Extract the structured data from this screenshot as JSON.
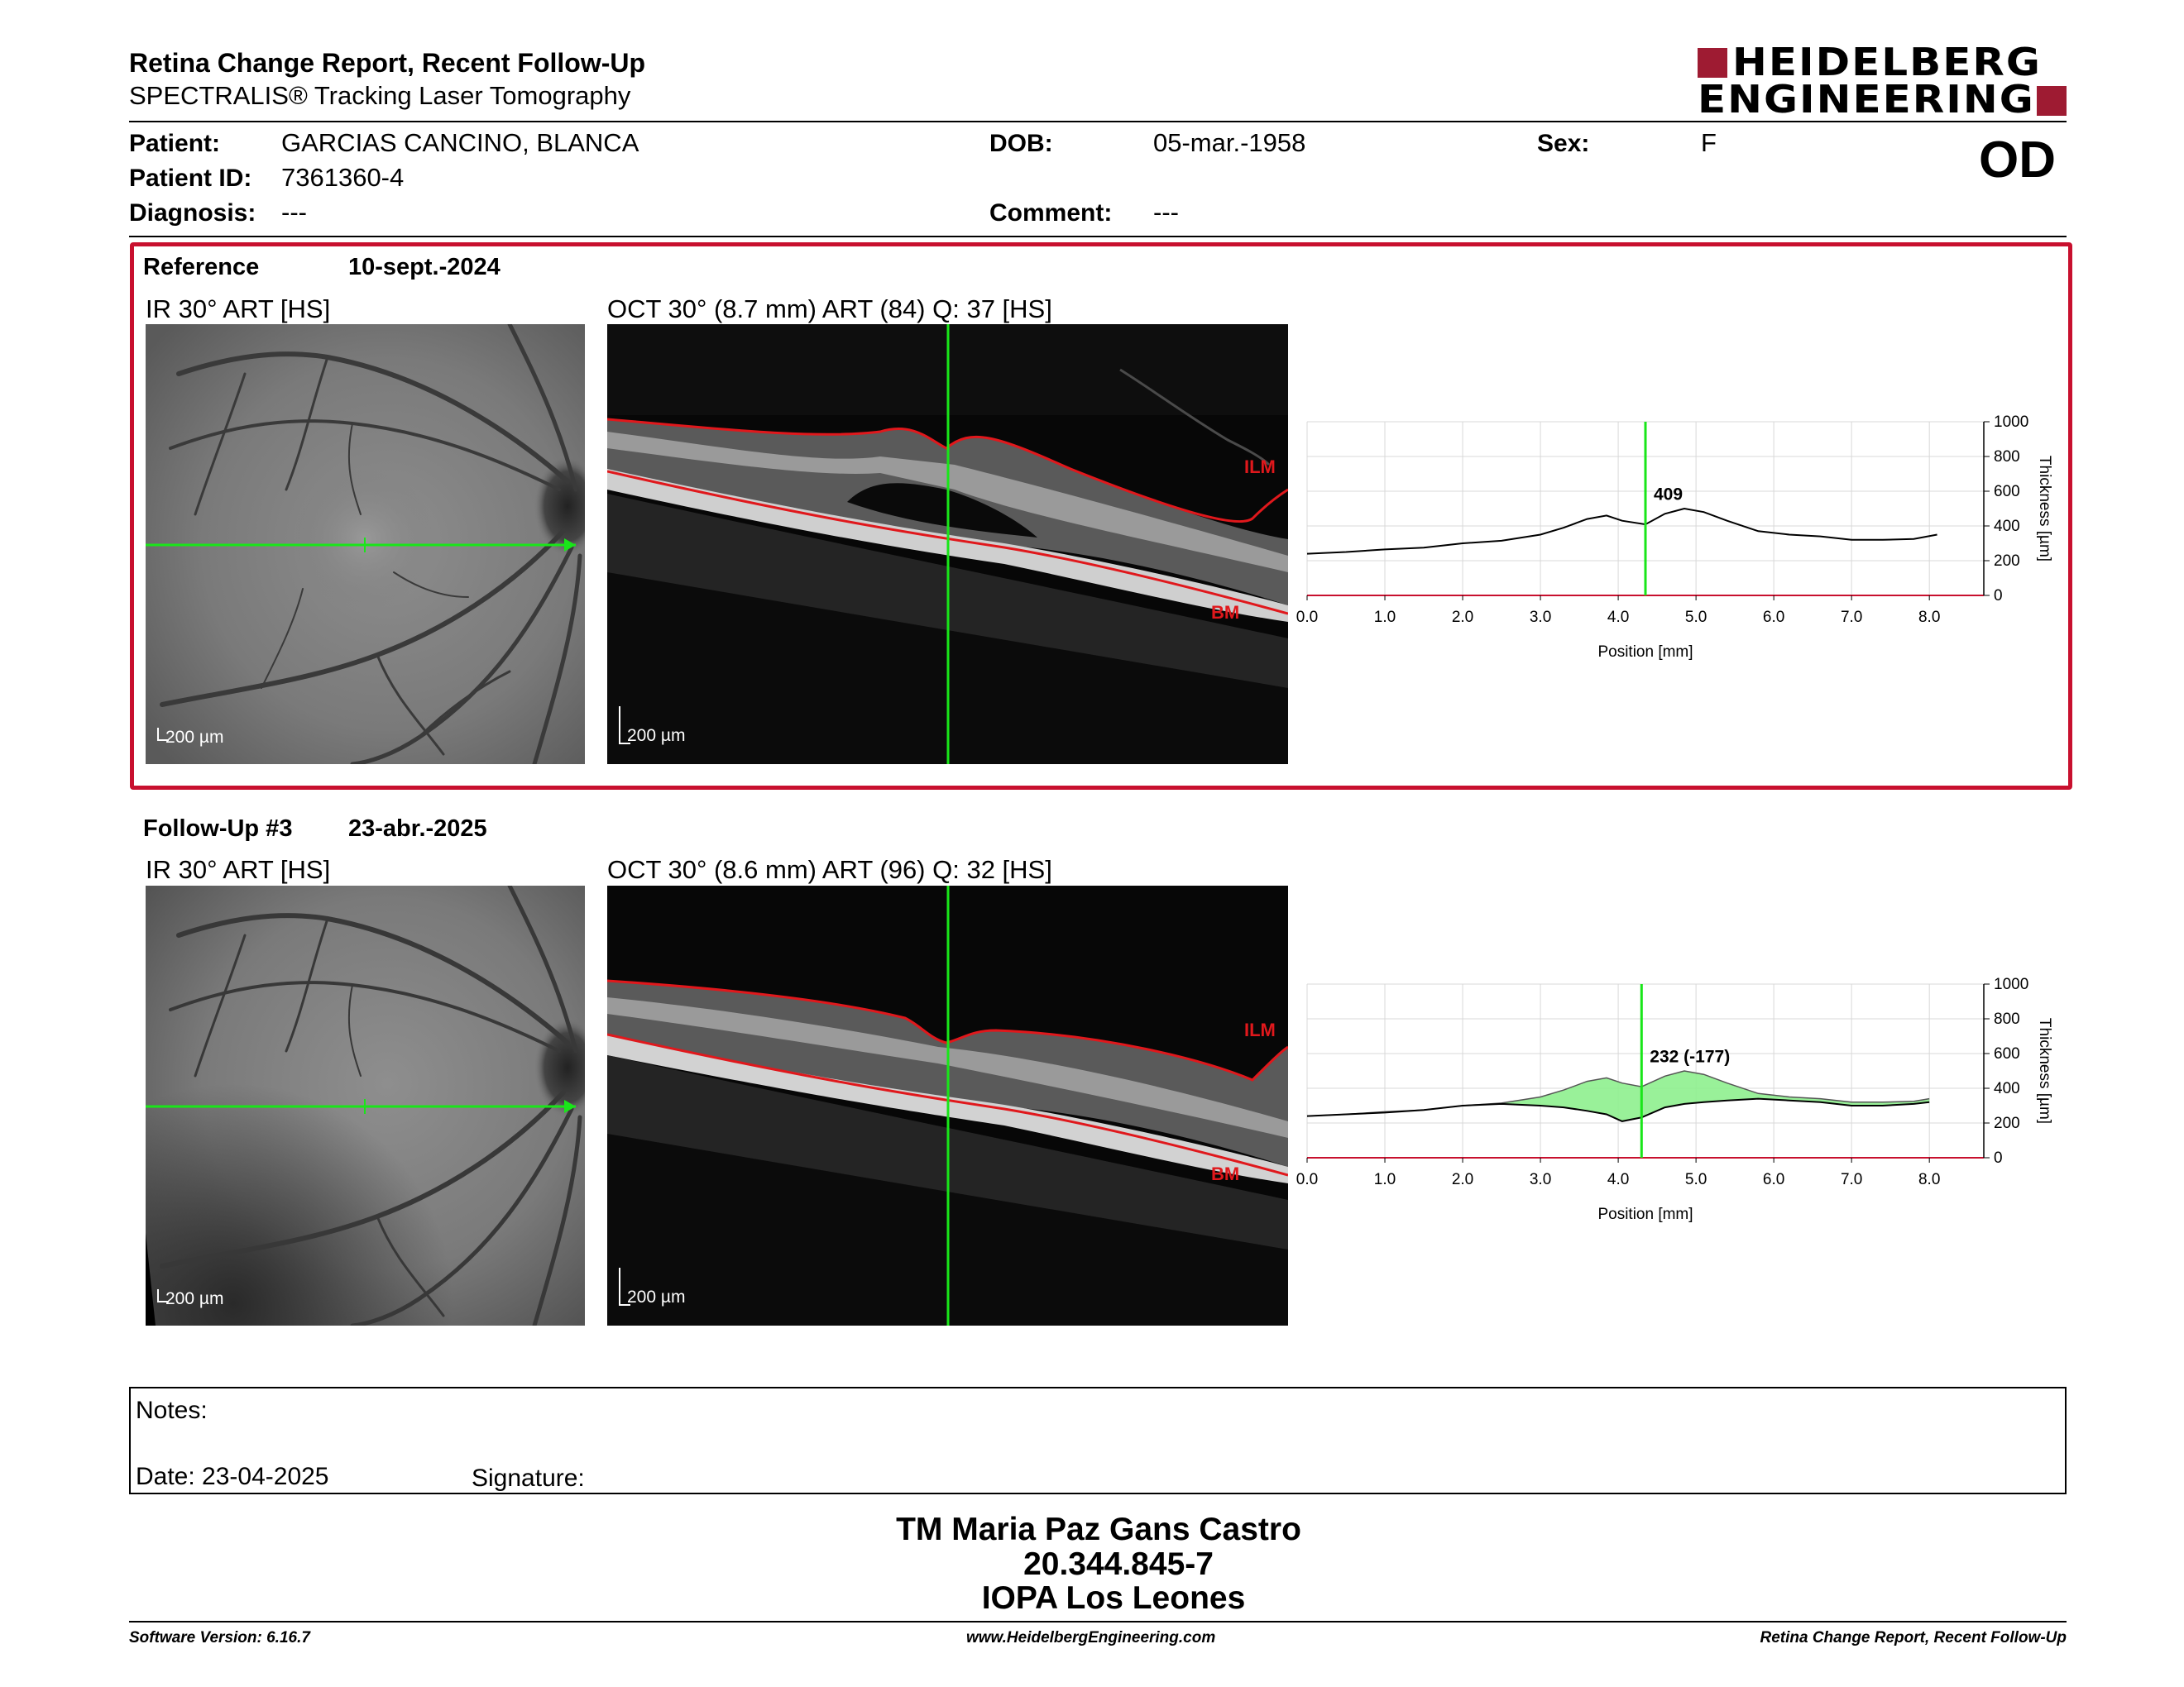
{
  "header": {
    "title": "Retina Change Report, Recent Follow-Up",
    "subtitle": "SPECTRALIS® Tracking Laser Tomography",
    "logo_line1": "HEIDELBERG",
    "logo_line2": "ENGINEERING",
    "eye": "OD"
  },
  "patient": {
    "patient_label": "Patient:",
    "patient_value": "GARCIAS CANCINO, BLANCA",
    "id_label": "Patient ID:",
    "id_value": "7361360-4",
    "diagnosis_label": "Diagnosis:",
    "diagnosis_value": "---",
    "dob_label": "DOB:",
    "dob_value": "05-mar.-1958",
    "comment_label": "Comment:",
    "comment_value": "---",
    "sex_label": "Sex:",
    "sex_value": "F"
  },
  "reference": {
    "label": "Reference",
    "date": "10-sept.-2024",
    "ir_caption": "IR 30° ART [HS]",
    "oct_caption": "OCT 30° (8.7 mm) ART (84) Q: 37 [HS]",
    "ir_scale": "200 µm",
    "oct_scale": "200 µm",
    "ilm": "ILM",
    "bm": "BM"
  },
  "followup": {
    "label": "Follow-Up #3",
    "date": "23-abr.-2025",
    "ir_caption": "IR 30° ART [HS]",
    "oct_caption": "OCT 30° (8.6 mm) ART (96) Q: 32 [HS]",
    "ir_scale": "200 µm",
    "oct_scale": "200 µm",
    "ilm": "ILM",
    "bm": "BM"
  },
  "chart_data": [
    {
      "type": "line",
      "xlabel": "Position [mm]",
      "ylabel": "Thickness [µm]",
      "xlim": [
        0,
        8.7
      ],
      "ylim": [
        0,
        1000
      ],
      "xticks": [
        "0.0",
        "1.0",
        "2.0",
        "3.0",
        "4.0",
        "5.0",
        "6.0",
        "7.0",
        "8.0"
      ],
      "yticks": [
        "0",
        "200",
        "400",
        "600",
        "800",
        "1000"
      ],
      "cursor_x": 4.35,
      "cursor_label": "409",
      "series": [
        {
          "x": [
            0,
            0.5,
            1.0,
            1.5,
            2.0,
            2.5,
            3.0,
            3.3,
            3.6,
            3.85,
            4.05,
            4.35,
            4.6,
            4.85,
            5.1,
            5.4,
            5.8,
            6.2,
            6.6,
            7.0,
            7.4,
            7.8,
            8.1
          ],
          "y": [
            240,
            250,
            265,
            275,
            300,
            315,
            350,
            390,
            440,
            460,
            430,
            409,
            470,
            500,
            480,
            430,
            370,
            350,
            340,
            320,
            320,
            325,
            350
          ]
        }
      ]
    },
    {
      "type": "area",
      "xlabel": "Position [mm]",
      "ylabel": "Thickness [µm]",
      "xlim": [
        0,
        8.7
      ],
      "ylim": [
        0,
        1000
      ],
      "xticks": [
        "0.0",
        "1.0",
        "2.0",
        "3.0",
        "4.0",
        "5.0",
        "6.0",
        "7.0",
        "8.0"
      ],
      "yticks": [
        "0",
        "200",
        "400",
        "600",
        "800",
        "1000"
      ],
      "cursor_x": 4.3,
      "cursor_label": "232 (-177)",
      "series": [
        {
          "name": "reference",
          "x": [
            0,
            0.5,
            1.0,
            1.5,
            2.0,
            2.5,
            3.0,
            3.3,
            3.6,
            3.85,
            4.05,
            4.3,
            4.6,
            4.85,
            5.1,
            5.4,
            5.8,
            6.2,
            6.6,
            7.0,
            7.4,
            7.8,
            8.0
          ],
          "y": [
            240,
            250,
            265,
            275,
            300,
            315,
            350,
            390,
            440,
            460,
            430,
            409,
            470,
            500,
            480,
            430,
            370,
            350,
            340,
            320,
            320,
            325,
            340
          ]
        },
        {
          "name": "follow-up",
          "x": [
            0,
            0.5,
            1.0,
            1.5,
            2.0,
            2.5,
            3.0,
            3.3,
            3.6,
            3.85,
            4.05,
            4.3,
            4.6,
            4.85,
            5.1,
            5.4,
            5.8,
            6.2,
            6.6,
            7.0,
            7.4,
            7.8,
            8.0
          ],
          "y": [
            240,
            250,
            260,
            275,
            300,
            310,
            300,
            290,
            270,
            250,
            210,
            232,
            290,
            310,
            320,
            330,
            340,
            330,
            320,
            300,
            300,
            310,
            320
          ]
        }
      ]
    }
  ],
  "notes": {
    "notes_label": "Notes:",
    "date_label": "Date: 23-04-2025",
    "signature_label": "Signature:"
  },
  "signatory": {
    "name": "TM Maria Paz Gans Castro",
    "rut": "20.344.845-7",
    "org": "IOPA Los Leones"
  },
  "footer": {
    "version": "Software Version: 6.16.7",
    "url": "www.HeidelbergEngineering.com",
    "report": "Retina Change Report, Recent Follow-Up"
  },
  "colors": {
    "brand_red": "#9e1b32",
    "frame_red": "#c8102e",
    "cursor_green": "#19e619",
    "layer_red": "#e0181c",
    "diff_green": "#8ef08e"
  }
}
